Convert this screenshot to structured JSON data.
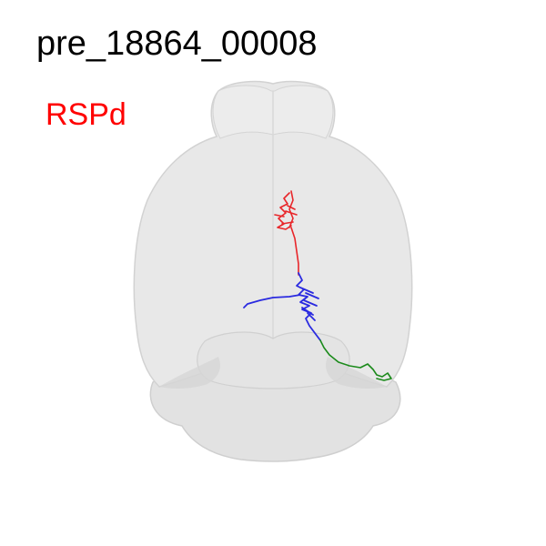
{
  "figure": {
    "title": "pre_18864_00008",
    "region_label": "RSPd",
    "colors": {
      "region_label": "#ff0000",
      "dendrite_red": "#e8262a",
      "axon_blue": "#2a2ae0",
      "axon_green": "#1b8a1b",
      "brain_fill": "#e6e6e6",
      "brain_edge": "#cfcfcf"
    }
  }
}
